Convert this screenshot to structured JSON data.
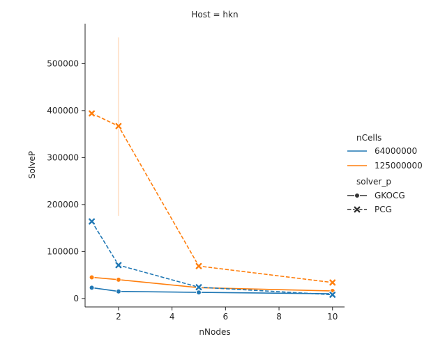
{
  "chart_data": {
    "type": "line",
    "title": "Host = hkn",
    "xlabel": "nNodes",
    "ylabel": "SolveP",
    "xlim": [
      0.75,
      10.45
    ],
    "ylim": [
      -18000,
      585000
    ],
    "xticks": [
      2,
      4,
      6,
      8,
      10
    ],
    "yticks": [
      0,
      100000,
      200000,
      300000,
      400000,
      500000
    ],
    "xtick_labels": [
      "2",
      "4",
      "6",
      "8",
      "10"
    ],
    "ytick_labels": [
      "0",
      "100000",
      "200000",
      "300000",
      "400000",
      "500000"
    ],
    "grid": false,
    "legend_position": "right",
    "legend": {
      "hue_title": "nCells",
      "style_title": "solver_p",
      "hue_entries": [
        {
          "label": "64000000",
          "color": "#1f77b4"
        },
        {
          "label": "125000000",
          "color": "#ff7f0e"
        }
      ],
      "style_entries": [
        {
          "label": "GKOCG",
          "marker": "circle",
          "dash": "solid"
        },
        {
          "label": "PCG",
          "marker": "x",
          "dash": "dashed"
        }
      ]
    },
    "series": [
      {
        "nCells": "64000000",
        "solver_p": "GKOCG",
        "color": "#1f77b4",
        "dash": "solid",
        "marker": "circle",
        "x": [
          1,
          2,
          5,
          10
        ],
        "y": [
          23000,
          15000,
          13000,
          10000
        ]
      },
      {
        "nCells": "125000000",
        "solver_p": "GKOCG",
        "color": "#ff7f0e",
        "dash": "solid",
        "marker": "circle",
        "x": [
          1,
          2,
          5,
          10
        ],
        "y": [
          45000,
          40000,
          23000,
          16000
        ]
      },
      {
        "nCells": "64000000",
        "solver_p": "PCG",
        "color": "#1f77b4",
        "dash": "dashed",
        "marker": "x",
        "x": [
          1,
          2,
          5,
          10
        ],
        "y": [
          164000,
          71000,
          24000,
          8000
        ]
      },
      {
        "nCells": "125000000",
        "solver_p": "PCG",
        "color": "#ff7f0e",
        "dash": "dashed",
        "marker": "x",
        "x": [
          1,
          2,
          5,
          10
        ],
        "y": [
          394000,
          367000,
          69000,
          34000
        ]
      }
    ],
    "error_bars": [
      {
        "series": "125000000 PCG",
        "x": 2,
        "y_low": 176000,
        "y_high": 556000,
        "color": "#ff7f0e"
      }
    ]
  }
}
